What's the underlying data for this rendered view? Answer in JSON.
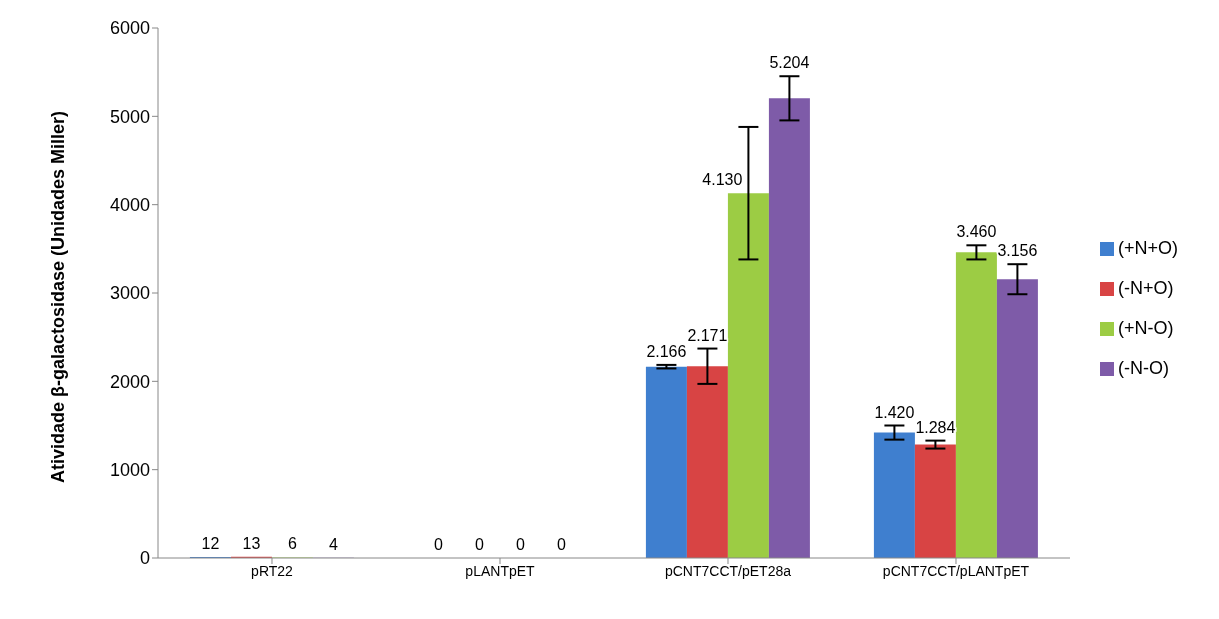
{
  "chart_data": {
    "type": "bar",
    "ylabel": "Atividade β-galactosidase (Unidades Miller)",
    "categories": [
      "pRT22",
      "pLANTpET",
      "pCNT7CCT/pET28a",
      "pCNT7CCT/pLANTpET"
    ],
    "series": [
      {
        "name": "(+N+O)",
        "color": "#3f7fcf",
        "values": [
          12,
          0,
          2166,
          1420
        ],
        "errors": [
          null,
          null,
          20,
          80
        ],
        "value_labels": [
          "12",
          "0",
          "2.166",
          "1.420"
        ]
      },
      {
        "name": "(-N+O)",
        "color": "#d84444",
        "values": [
          13,
          0,
          2171,
          1284
        ],
        "errors": [
          null,
          null,
          200,
          45
        ],
        "value_labels": [
          "13",
          "0",
          "2.171",
          "1.284"
        ]
      },
      {
        "name": "(+N-O)",
        "color": "#9ccc44",
        "values": [
          6,
          0,
          4130,
          3460
        ],
        "errors": [
          null,
          null,
          750,
          80
        ],
        "value_labels": [
          "6",
          "0",
          "4.130",
          "3.460"
        ]
      },
      {
        "name": "(-N-O)",
        "color": "#7e5ba8",
        "values": [
          4,
          0,
          5204,
          3156
        ],
        "errors": [
          null,
          null,
          250,
          170
        ],
        "value_labels": [
          "4",
          "0",
          "5.204",
          "3.156"
        ]
      }
    ],
    "ylim": [
      0,
      6000
    ],
    "yticks": [
      0,
      1000,
      2000,
      3000,
      4000,
      5000,
      6000
    ],
    "grid": false,
    "legend": "right"
  }
}
